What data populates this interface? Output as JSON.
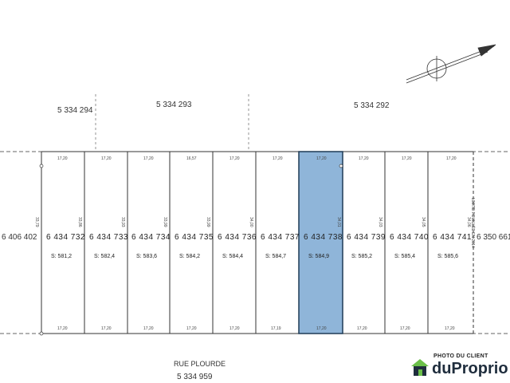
{
  "blocks_top": [
    "5 334 294",
    "5 334 293",
    "5 334 292"
  ],
  "left_lot": "6 406 402",
  "right_lot": "6 350 661",
  "lots": [
    {
      "number": "6 434 732",
      "area": "S: 581,2",
      "top_width": "17,20",
      "bottom_width": "17,20",
      "depth": "33,79"
    },
    {
      "number": "6 434 733",
      "area": "S: 582,4",
      "top_width": "17,20",
      "bottom_width": "17,20",
      "depth": "33,86"
    },
    {
      "number": "6 434 734",
      "area": "S: 583,6",
      "top_width": "17,20",
      "bottom_width": "17,20",
      "depth": "33,93"
    },
    {
      "number": "6 434 735",
      "area": "S: 584,2",
      "top_width": "16,57",
      "bottom_width": "17,20",
      "depth": "33,99"
    },
    {
      "number": "6 434 736",
      "area": "S: 584,4",
      "top_width": "17,20",
      "bottom_width": "17,20",
      "depth": "33,99"
    },
    {
      "number": "6 434 737",
      "area": "S: 584,7",
      "top_width": "17,20",
      "bottom_width": "17,19",
      "depth": "34,00"
    },
    {
      "number": "6 434 738",
      "area": "S: 584,9",
      "top_width": "17,20",
      "bottom_width": "17,20",
      "depth": "34,01",
      "highlighted": true
    },
    {
      "number": "6 434 739",
      "area": "S: 585,2",
      "top_width": "17,20",
      "bottom_width": "17,20",
      "depth": "34,03"
    },
    {
      "number": "6 434 740",
      "area": "S: 585,4",
      "top_width": "17,20",
      "bottom_width": "17,20",
      "depth": "34,05"
    },
    {
      "number": "6 434 741",
      "area": "S: 585,6",
      "top_width": "17,20",
      "bottom_width": "17,20",
      "depth": "34,06"
    }
  ],
  "street_name": "RUE PLOURDE",
  "street_lot": "5 334 959",
  "boundary_note": "LIMITE FOUILLÉE EN 2014",
  "logo": {
    "caption": "PHOTO DU CLIENT",
    "brand": "duProprio"
  },
  "colors": {
    "highlight": "#8fb5d9",
    "line": "#333333"
  }
}
